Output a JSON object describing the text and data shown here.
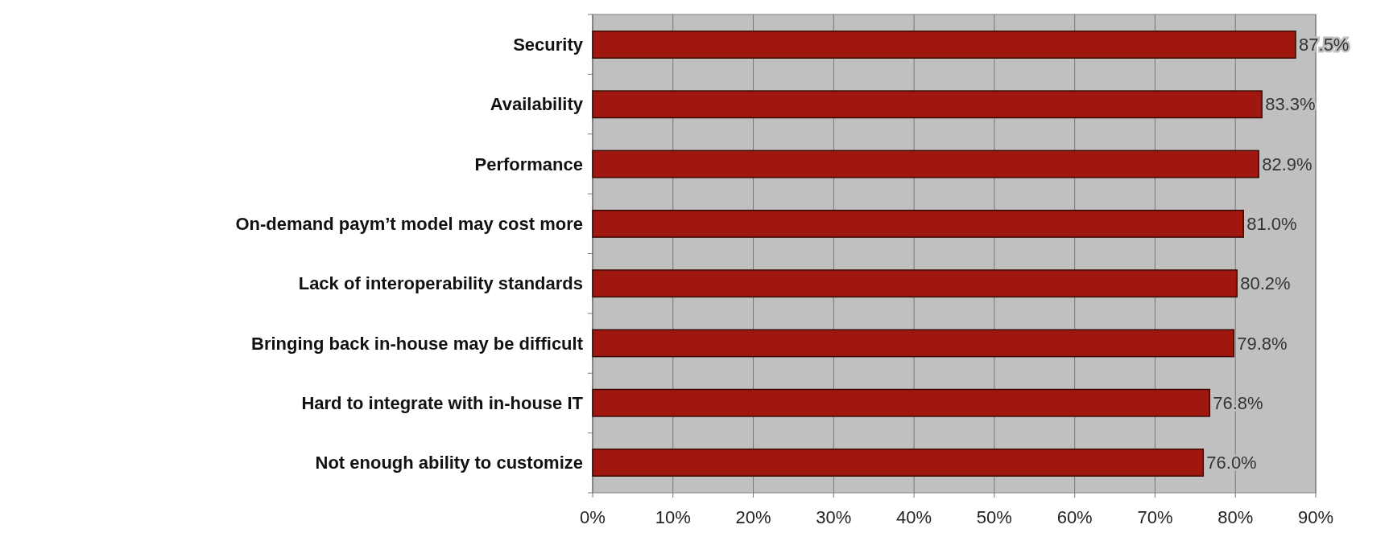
{
  "chart_data": {
    "type": "bar",
    "orientation": "horizontal",
    "categories": [
      "Security",
      "Availability",
      "Performance",
      "On-demand paym’t model may cost more",
      "Lack of interoperability standards",
      "Bringing back in-house may be difficult",
      "Hard to integrate with in-house IT",
      "Not enough ability to customize"
    ],
    "values": [
      87.5,
      83.3,
      82.9,
      81.0,
      80.2,
      79.8,
      76.8,
      76.0
    ],
    "value_labels": [
      "87.5%",
      "83.3%",
      "82.9%",
      "81.0%",
      "80.2%",
      "79.8%",
      "76.8%",
      "76.0%"
    ],
    "color": "#a0170f",
    "xlim": [
      0,
      90
    ],
    "xticks": [
      {
        "value": 0,
        "label": "0%"
      },
      {
        "value": 10,
        "label": "10%"
      },
      {
        "value": 20,
        "label": "20%"
      },
      {
        "value": 30,
        "label": "30%"
      },
      {
        "value": 40,
        "label": "40%"
      },
      {
        "value": 50,
        "label": "50%"
      },
      {
        "value": 60,
        "label": "60%"
      },
      {
        "value": 70,
        "label": "70%"
      },
      {
        "value": 80,
        "label": "80%"
      },
      {
        "value": 90,
        "label": "90%"
      }
    ],
    "grid": "x"
  }
}
